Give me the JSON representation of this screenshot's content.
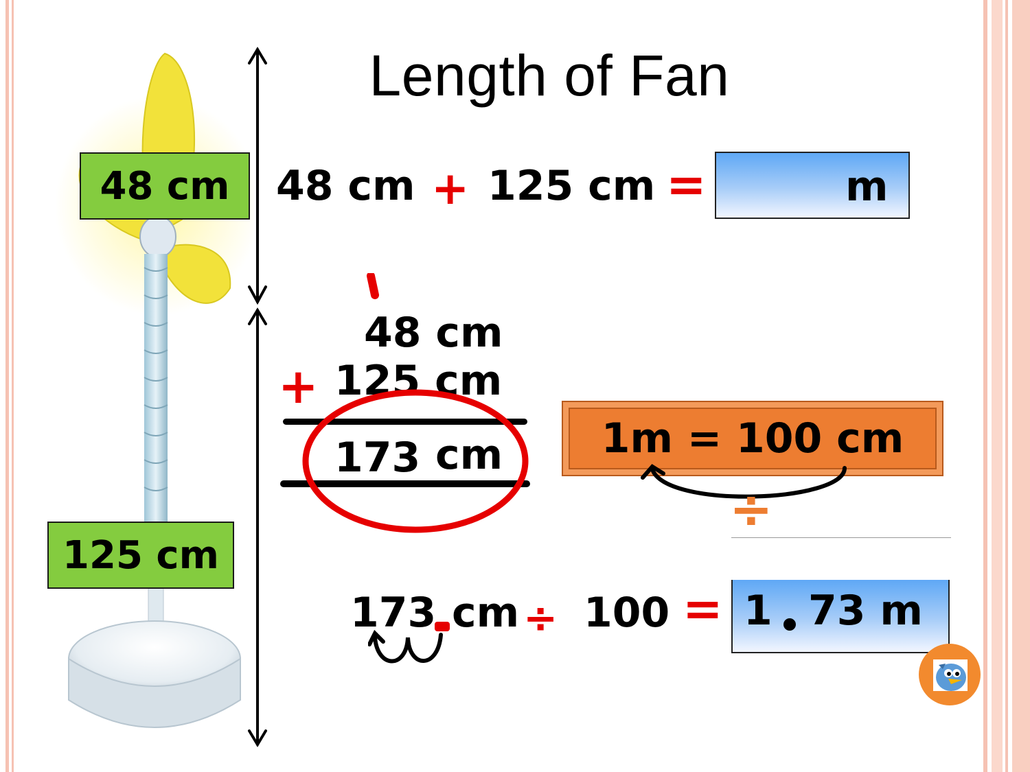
{
  "title": "Length of Fan",
  "labels": {
    "top_part": "48 cm",
    "bottom_part": "125 cm"
  },
  "equation": {
    "term1": "48 cm",
    "plus": "+",
    "term2": "125 cm",
    "equals": "=",
    "answer_unit": "m"
  },
  "column_addition": {
    "addend1": "48 cm",
    "plus": "+",
    "addend2": "125 cm",
    "sum_number": "173",
    "sum_unit": "cm"
  },
  "conversion": {
    "fact": "1m = 100 cm",
    "operator": "÷"
  },
  "division": {
    "number": "173",
    "unit": "cm",
    "divide": "÷",
    "divisor": "100",
    "equals": "=",
    "result_int": "1",
    "result_frac": "73 m"
  },
  "colors": {
    "label_green": "#84cc3f",
    "accent_red": "#e60000",
    "orange": "#ed7d31",
    "stripe_pink": "#f4b8a8"
  },
  "icons": {
    "fan": "fan-illustration",
    "bird": "blue-bird-icon"
  }
}
